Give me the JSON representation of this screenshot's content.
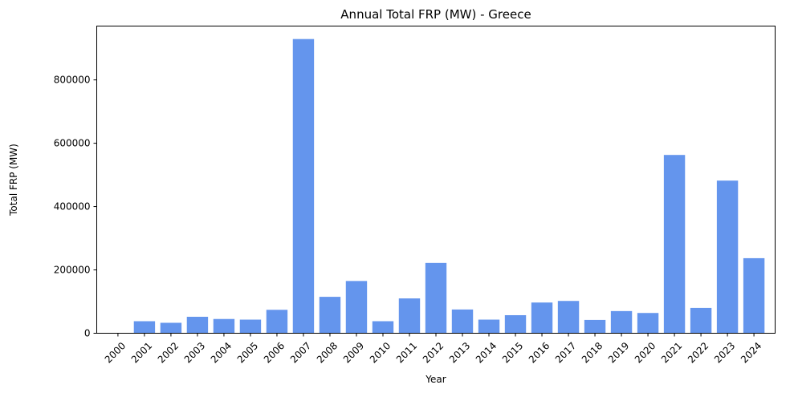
{
  "chart_data": {
    "type": "bar",
    "title": "Annual Total FRP (MW) - Greece",
    "xlabel": "Year",
    "ylabel": "Total FRP (MW)",
    "ylim": [
      0,
      970000
    ],
    "yticks": [
      0,
      200000,
      400000,
      600000,
      800000
    ],
    "ytick_labels": [
      "0",
      "200000",
      "400000",
      "600000",
      "800000"
    ],
    "bar_color": "#6495ED",
    "grid": false,
    "categories": [
      "2000",
      "2001",
      "2002",
      "2003",
      "2004",
      "2005",
      "2006",
      "2007",
      "2008",
      "2009",
      "2010",
      "2011",
      "2012",
      "2013",
      "2014",
      "2015",
      "2016",
      "2017",
      "2018",
      "2019",
      "2020",
      "2021",
      "2022",
      "2023",
      "2024"
    ],
    "values": [
      0,
      38000,
      33000,
      52000,
      45000,
      43000,
      74000,
      929000,
      115000,
      165000,
      38000,
      110000,
      222000,
      75000,
      43000,
      57000,
      97000,
      102000,
      42000,
      70000,
      64000,
      563000,
      80000,
      482000,
      237000
    ]
  }
}
